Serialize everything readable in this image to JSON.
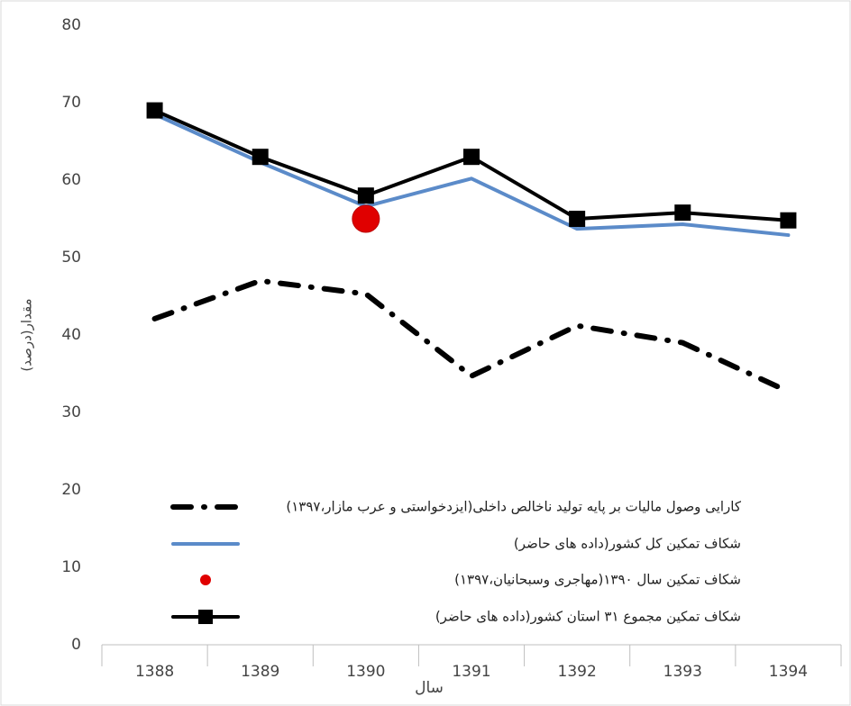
{
  "chart_data": {
    "type": "line",
    "x_label": "سال",
    "y_label": "مقدار(درصد)",
    "categories": [
      "1388",
      "1389",
      "1390",
      "1391",
      "1392",
      "1393",
      "1394"
    ],
    "series": [
      {
        "name": "کارایی وصول مالیات بر پایه تولید ناخالص داخلی(ایزدخواستی و عرب مازار،۱۳۹۷)",
        "color": "#000000",
        "style": "dash-dot",
        "values": [
          42.1,
          47,
          45.3,
          34.7,
          41.2,
          39,
          32.7
        ]
      },
      {
        "name": "شکاف تمکین کل کشور(داده های حاضر)",
        "color": "#5b8bc9",
        "style": "solid",
        "values": [
          68.5,
          62.3,
          56.6,
          60.2,
          53.7,
          54.3,
          52.9
        ]
      },
      {
        "name": "شکاف تمکین سال ۱۳۹۰(مهاجری وسبحانیان،۱۳۹۷)",
        "color": "#e00000",
        "style": "none",
        "marker": "circle",
        "values": [
          null,
          null,
          55,
          null,
          null,
          null,
          null
        ]
      },
      {
        "name": "شکاف تمکین مجموع ۳۱ استان کشور(داده های حاضر)",
        "color": "#000000",
        "style": "solid",
        "marker": "square",
        "values": [
          69,
          63,
          58,
          63,
          55,
          55.8,
          54.8
        ]
      }
    ],
    "ylim": [
      0,
      80
    ],
    "yticks": [
      0,
      10,
      20,
      30,
      40,
      50,
      60,
      70,
      80
    ],
    "grid": false
  }
}
